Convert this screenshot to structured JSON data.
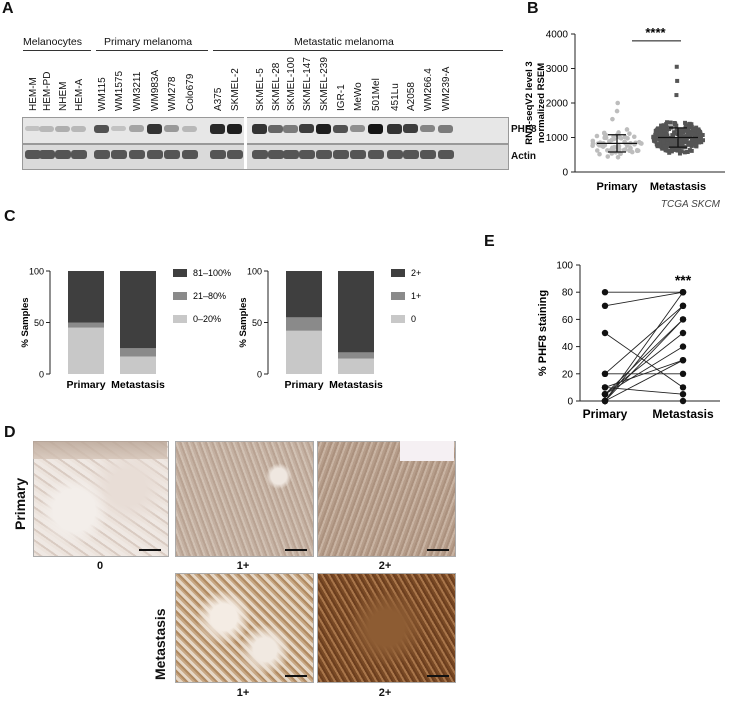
{
  "panels": {
    "a": "A",
    "b": "B",
    "c": "C",
    "d": "D",
    "e": "E"
  },
  "panel_a": {
    "groups": [
      "Melanocytes",
      "Primary melanoma",
      "Metastatic melanoma"
    ],
    "lanes": [
      "HEM-M",
      "HEM-PD",
      "NHEM",
      "HEM-A",
      "WM115",
      "WM1575",
      "WM3211",
      "WM983A",
      "WM278",
      "Colo679",
      "A375",
      "SKMEL-2",
      "SKMEL-5",
      "SKMEL-28",
      "SKMEL-100",
      "SKMEL-147",
      "SKMEL-239",
      "IGR-1",
      "MeWo",
      "501Mel",
      "451Lu",
      "A2058",
      "WM266.4",
      "WM239-A"
    ],
    "blots": [
      "PHF8",
      "Actin"
    ]
  },
  "panel_b": {
    "ylabel": "RNA-seqV2 level 3 normalized RSEM",
    "yticks": [
      "0",
      "1000",
      "2000",
      "3000",
      "4000"
    ],
    "significance": "****",
    "source": "TCGA SKCM"
  },
  "panel_c": {
    "ylabel": "% Samples",
    "yticks": [
      "0",
      "50",
      "100"
    ],
    "left_legend": [
      "81–100%",
      "21–80%",
      "0–20%"
    ],
    "right_legend": [
      "2+",
      "1+",
      "0"
    ]
  },
  "panel_e": {
    "ylabel": "% PHF8 staining",
    "yticks": [
      "0",
      "20",
      "40",
      "60",
      "80",
      "100"
    ],
    "significance": "***"
  },
  "panel_d": {
    "row_labels": [
      "Primary",
      "Metastasis"
    ],
    "primary_scores": [
      "0",
      "1+",
      "2+"
    ],
    "metastasis_scores": [
      "1+",
      "2+"
    ]
  },
  "colors": {
    "dark": "#3f3f3f",
    "mid": "#8a8a8a",
    "light": "#c8c8c8"
  },
  "chart_data": [
    {
      "type": "scatter",
      "categories": [
        "Primary",
        "Metastasis"
      ],
      "ylabel": "RNA-seqV2 level 3 normalized RSEM",
      "ylim": [
        0,
        4000
      ],
      "series": [
        {
          "name": "Primary",
          "mean": 830,
          "sd_low": 580,
          "sd_high": 1080,
          "max": 2000
        },
        {
          "name": "Metastasis",
          "mean": 1000,
          "sd_low": 720,
          "sd_high": 1280,
          "max": 3050
        }
      ]
    },
    {
      "type": "bar",
      "stacked": true,
      "categories": [
        "Primary",
        "Metastasis"
      ],
      "ylabel": "% Samples",
      "ylim": [
        0,
        100
      ],
      "series": [
        {
          "name": "0–20%",
          "values": [
            45,
            17
          ]
        },
        {
          "name": "21–80%",
          "values": [
            5,
            8
          ]
        },
        {
          "name": "81–100%",
          "values": [
            50,
            75
          ]
        }
      ]
    },
    {
      "type": "bar",
      "stacked": true,
      "categories": [
        "Primary",
        "Metastasis"
      ],
      "ylabel": "% Samples",
      "ylim": [
        0,
        100
      ],
      "series": [
        {
          "name": "0",
          "values": [
            42,
            15
          ]
        },
        {
          "name": "1+",
          "values": [
            13,
            6
          ]
        },
        {
          "name": "2+",
          "values": [
            45,
            79
          ]
        }
      ]
    },
    {
      "type": "line",
      "categories": [
        "Primary",
        "Metastasis"
      ],
      "ylabel": "% PHF8 staining",
      "ylim": [
        0,
        100
      ],
      "pairs": [
        [
          0,
          80
        ],
        [
          0,
          70
        ],
        [
          0,
          60
        ],
        [
          5,
          50
        ],
        [
          5,
          40
        ],
        [
          10,
          30
        ],
        [
          20,
          20
        ],
        [
          50,
          10
        ],
        [
          70,
          80
        ],
        [
          80,
          80
        ],
        [
          10,
          5
        ],
        [
          0,
          0
        ],
        [
          20,
          70
        ],
        [
          0,
          30
        ],
        [
          5,
          60
        ]
      ]
    }
  ]
}
